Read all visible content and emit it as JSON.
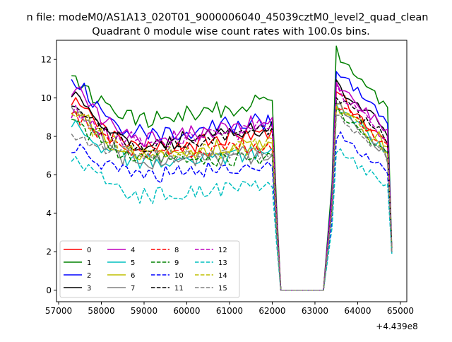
{
  "figure": {
    "suptitle": "n file: modeM0/AS1A13_020T01_9000006040_45039cztM0_level2_quad_clean",
    "title": "Quadrant 0 module wise count rates with 100.0s bins.",
    "x_offset_label": "+4.439e8"
  },
  "chart_data": {
    "type": "line",
    "title": "Quadrant 0 module wise count rates with 100.0s bins.",
    "xlabel": "",
    "ylabel": "",
    "x_offset": 443900000,
    "xlim": [
      56950,
      65150
    ],
    "ylim": [
      -0.6,
      13.0
    ],
    "xticks": [
      57000,
      58000,
      59000,
      60000,
      61000,
      62000,
      63000,
      64000,
      65000
    ],
    "yticks": [
      0,
      2,
      4,
      6,
      8,
      10,
      12
    ],
    "xtick_labels": [
      "57000",
      "58000",
      "59000",
      "60000",
      "61000",
      "62000",
      "63000",
      "64000",
      "65000"
    ],
    "ytick_labels": [
      "0",
      "2",
      "4",
      "6",
      "8",
      "10",
      "12"
    ],
    "grid": false,
    "legend": {
      "position": "lower-left",
      "columns": 4
    },
    "segment1": {
      "x_start": 57300,
      "x_end": 62000,
      "step": 100
    },
    "gap": {
      "drop_x": 62100,
      "zero_start": 62200,
      "zero_end": 63200,
      "rise_x": 63400
    },
    "segment2": {
      "x_start": 63500,
      "x_end": 64700,
      "step": 100,
      "end_x": 64800
    },
    "series": [
      {
        "name": "0",
        "color": "#ff0000",
        "dash": "solid",
        "seg1_start": 10.0,
        "seg1_mid": 7.3,
        "seg1_end": 8.2,
        "seg2_start": 10.3,
        "seg2_end": 7.5,
        "end": 2.0
      },
      {
        "name": "1",
        "color": "#008000",
        "dash": "solid",
        "seg1_start": 11.4,
        "seg1_mid": 8.8,
        "seg1_end": 9.9,
        "seg2_start": 12.4,
        "seg2_end": 9.5,
        "end": 2.1
      },
      {
        "name": "2",
        "color": "#0000ff",
        "dash": "solid",
        "seg1_start": 11.2,
        "seg1_mid": 8.1,
        "seg1_end": 8.8,
        "seg2_start": 11.4,
        "seg2_end": 8.8,
        "end": 2.0
      },
      {
        "name": "3",
        "color": "#000000",
        "dash": "solid",
        "seg1_start": 10.4,
        "seg1_mid": 7.5,
        "seg1_end": 8.6,
        "seg2_start": 10.7,
        "seg2_end": 8.3,
        "end": 2.0
      },
      {
        "name": "4",
        "color": "#bf00bf",
        "dash": "solid",
        "seg1_start": 10.6,
        "seg1_mid": 7.9,
        "seg1_end": 8.9,
        "seg2_start": 10.9,
        "seg2_end": 8.2,
        "end": 2.0
      },
      {
        "name": "5",
        "color": "#00bfbf",
        "dash": "solid",
        "seg1_start": 9.0,
        "seg1_mid": 6.6,
        "seg1_end": 7.3,
        "seg2_start": 9.5,
        "seg2_end": 7.2,
        "end": 1.9
      },
      {
        "name": "6",
        "color": "#bfbf00",
        "dash": "solid",
        "seg1_start": 9.6,
        "seg1_mid": 7.0,
        "seg1_end": 7.6,
        "seg2_start": 9.8,
        "seg2_end": 7.6,
        "end": 2.0
      },
      {
        "name": "7",
        "color": "#808080",
        "dash": "solid",
        "seg1_start": 9.8,
        "seg1_mid": 6.6,
        "seg1_end": 7.1,
        "seg2_start": 9.6,
        "seg2_end": 7.0,
        "end": 2.0
      },
      {
        "name": "8",
        "color": "#ff0000",
        "dash": "dashed",
        "seg1_start": 9.4,
        "seg1_mid": 7.1,
        "seg1_end": 7.6,
        "seg2_start": 9.7,
        "seg2_end": 7.4,
        "end": 2.0
      },
      {
        "name": "9",
        "color": "#008000",
        "dash": "dashed",
        "seg1_start": 9.2,
        "seg1_mid": 6.8,
        "seg1_end": 6.9,
        "seg2_start": 9.4,
        "seg2_end": 7.1,
        "end": 2.0
      },
      {
        "name": "10",
        "color": "#0000ff",
        "dash": "dashed",
        "seg1_start": 7.6,
        "seg1_mid": 5.9,
        "seg1_end": 6.4,
        "seg2_start": 8.1,
        "seg2_end": 6.2,
        "end": 1.9
      },
      {
        "name": "11",
        "color": "#000000",
        "dash": "dashed",
        "seg1_start": 10.1,
        "seg1_mid": 7.4,
        "seg1_end": 8.5,
        "seg2_start": 10.0,
        "seg2_end": 7.9,
        "end": 2.0
      },
      {
        "name": "12",
        "color": "#bf00bf",
        "dash": "dashed",
        "seg1_start": 9.4,
        "seg1_mid": 7.7,
        "seg1_end": 8.6,
        "seg2_start": 10.4,
        "seg2_end": 7.8,
        "end": 2.0
      },
      {
        "name": "13",
        "color": "#00bfbf",
        "dash": "dashed",
        "seg1_start": 7.0,
        "seg1_mid": 4.9,
        "seg1_end": 5.5,
        "seg2_start": 7.2,
        "seg2_end": 5.5,
        "end": 1.9
      },
      {
        "name": "14",
        "color": "#bfbf00",
        "dash": "dashed",
        "seg1_start": 9.4,
        "seg1_mid": 7.2,
        "seg1_end": 7.5,
        "seg2_start": 9.4,
        "seg2_end": 7.3,
        "end": 2.0
      },
      {
        "name": "15",
        "color": "#808080",
        "dash": "dashed",
        "seg1_start": 8.4,
        "seg1_mid": 7.0,
        "seg1_end": 7.0,
        "seg2_start": 9.2,
        "seg2_end": 6.9,
        "end": 2.0
      }
    ]
  }
}
